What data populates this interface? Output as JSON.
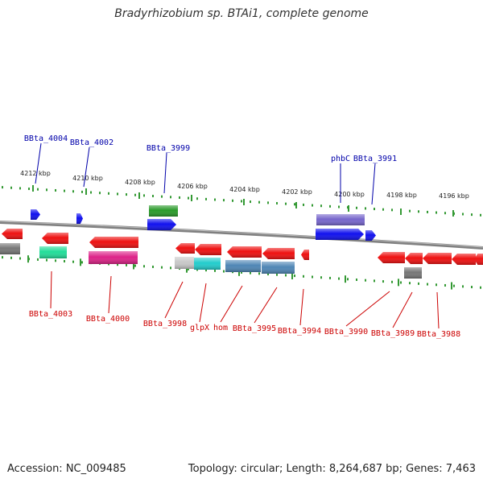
{
  "title": "Bradyrhizobium sp. BTAi1, complete genome",
  "footer": {
    "accession": "Accession: NC_009485",
    "topology": "Topology: circular; Length: 8,264,687 bp; Genes: 7,463"
  },
  "colors": {
    "backbone": "#808080",
    "tick": "#339933",
    "label_top": "#0000aa",
    "label_bottom": "#cc0000",
    "red": "#ee1111",
    "blue": "#1111ee",
    "green": "#2a9a2a",
    "purple": "#7766cc",
    "gray": "#777777",
    "teal_green": "#22dd99",
    "magenta": "#dd2288",
    "light_gray": "#c8c8c8",
    "cyan": "#22cccc",
    "steel_blue": "#4f86b5"
  },
  "ruler": [
    {
      "label": "4212 kbp"
    },
    {
      "label": "4210 kbp"
    },
    {
      "label": "4208 kbp"
    },
    {
      "label": "4206 kbp"
    },
    {
      "label": "4204 kbp"
    },
    {
      "label": "4202 kbp"
    },
    {
      "label": "4200 kbp"
    },
    {
      "label": "4198 kbp"
    },
    {
      "label": "4196 kbp"
    }
  ],
  "gene_labels_top": [
    {
      "name": "BBta_4004"
    },
    {
      "name": "BBta_4002"
    },
    {
      "name": "BBta_3999"
    },
    {
      "name": "phbC"
    },
    {
      "name": "BBta_3991"
    }
  ],
  "gene_labels_bottom": [
    {
      "name": "BBta_4003"
    },
    {
      "name": "BBta_4000"
    },
    {
      "name": "BBta_3998"
    },
    {
      "name": "glpX"
    },
    {
      "name": "hom"
    },
    {
      "name": "BBta_3995"
    },
    {
      "name": "BBta_3994"
    },
    {
      "name": "BBta_3990"
    },
    {
      "name": "BBta_3989"
    },
    {
      "name": "BBta_3988"
    }
  ]
}
